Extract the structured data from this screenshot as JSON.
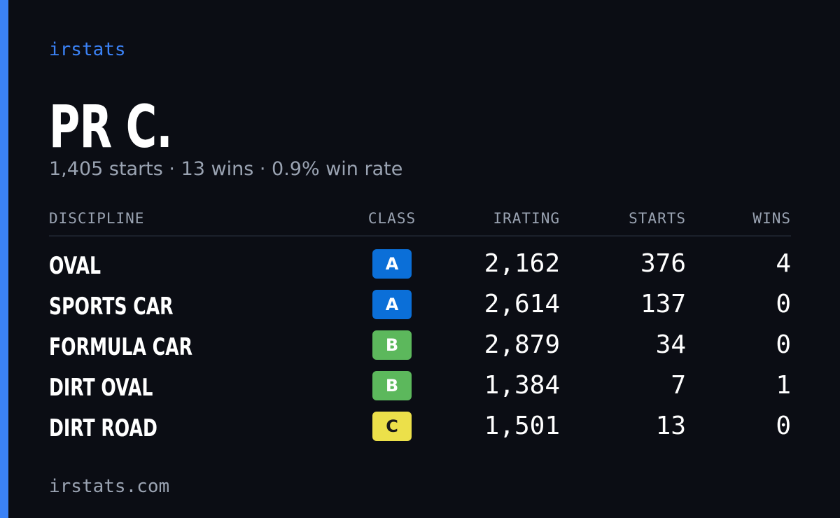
{
  "brand": "irstats",
  "profile": {
    "name": "PR C.",
    "summary": "1,405 starts · 13 wins · 0.9% win rate"
  },
  "table": {
    "headers": [
      "DISCIPLINE",
      "CLASS",
      "IRATING",
      "STARTS",
      "WINS"
    ],
    "rows": [
      {
        "discipline": "OVAL",
        "class": "A",
        "class_color": "#0b6fd8",
        "irating": "2,162",
        "starts": "376",
        "wins": "4"
      },
      {
        "discipline": "SPORTS CAR",
        "class": "A",
        "class_color": "#0b6fd8",
        "irating": "2,614",
        "starts": "137",
        "wins": "0"
      },
      {
        "discipline": "FORMULA CAR",
        "class": "B",
        "class_color": "#5cb85c",
        "irating": "2,879",
        "starts": "34",
        "wins": "0"
      },
      {
        "discipline": "DIRT OVAL",
        "class": "B",
        "class_color": "#5cb85c",
        "irating": "1,384",
        "starts": "7",
        "wins": "1"
      },
      {
        "discipline": "DIRT ROAD",
        "class": "C",
        "class_color": "#ece04a",
        "irating": "1,501",
        "starts": "13",
        "wins": "0"
      }
    ]
  },
  "footer": "irstats.com"
}
